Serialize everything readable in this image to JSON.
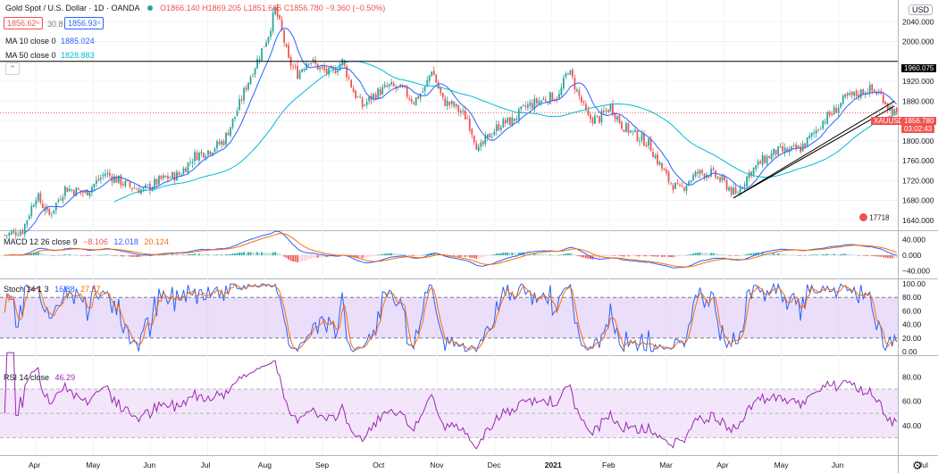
{
  "header": {
    "symbol": "Gold Spot / U.S. Dollar · 1D · OANDA",
    "ohlc": "O1866.140 H1869.205 L1851.665 C1856.780 −9.360 (−0.50%)",
    "bid": "1856.62⁶",
    "spread": "30.8",
    "ask": "1856.93⁴",
    "ma10_title": "MA 10 close 0",
    "ma10_value": "1885.024",
    "ma50_title": "MA 50 close 0",
    "ma50_value": "1828.883",
    "currency": "USD"
  },
  "badges": {
    "hline_label": "1960.075",
    "symbol_tag": "XAUUSD",
    "price_label": "1856.780",
    "countdown": "03:02:43",
    "event_label": "17718"
  },
  "colors": {
    "up": "#26a69a",
    "down": "#ef5350",
    "ma10": "#2962ff",
    "ma50": "#00bcd4",
    "macd": "#2962ff",
    "signal": "#ff6d00",
    "stoch_k": "#2962ff",
    "stoch_d": "#ff6d00",
    "stoch_band": "#d9c2f5",
    "rsi": "#9c27b0",
    "rsi_band": "#f0e0fa",
    "hline": "#000000",
    "price_tag": "#ef5350"
  },
  "panels": {
    "macd": {
      "title": "MACD 12 26 close 9",
      "v1": "−8.106",
      "v2": "12.018",
      "v3": "20.124",
      "ticks": [
        "40.000",
        "0.000",
        "−40.000"
      ]
    },
    "stoch": {
      "title": "Stoch 14 1 3",
      "v1": "16.88",
      "v2": "27.57",
      "ticks": [
        "100.00",
        "80.00",
        "60.00",
        "40.00",
        "20.00",
        "0.00"
      ]
    },
    "rsi": {
      "title": "RSI 14 close",
      "v1": "46.29",
      "ticks": [
        "80.00",
        "60.00",
        "40.00"
      ]
    }
  },
  "price_ticks": [
    "2040.000",
    "2000.000",
    "1920.000",
    "1880.000",
    "1840.000",
    "1800.000",
    "1760.000",
    "1720.000",
    "1680.000",
    "1640.000"
  ],
  "chart_data": {
    "type": "candlestick",
    "symbol": "XAUUSD",
    "interval": "1D",
    "x_months": [
      "Apr",
      "May",
      "Jun",
      "Jul",
      "Aug",
      "Sep",
      "Oct",
      "Nov",
      "Dec",
      "2021",
      "Feb",
      "Mar",
      "Apr",
      "May",
      "Jun",
      "Jul"
    ],
    "price_anchors": [
      [
        0,
        1610
      ],
      [
        8,
        1620
      ],
      [
        14,
        1690
      ],
      [
        20,
        1650
      ],
      [
        27,
        1705
      ],
      [
        36,
        1695
      ],
      [
        45,
        1735
      ],
      [
        55,
        1710
      ],
      [
        62,
        1700
      ],
      [
        70,
        1722
      ],
      [
        78,
        1732
      ],
      [
        85,
        1770
      ],
      [
        92,
        1782
      ],
      [
        98,
        1800
      ],
      [
        103,
        1850
      ],
      [
        108,
        1910
      ],
      [
        113,
        1962
      ],
      [
        118,
        2015
      ],
      [
        121,
        2065
      ],
      [
        124,
        2020
      ],
      [
        127,
        1960
      ],
      [
        131,
        1935
      ],
      [
        136,
        1965
      ],
      [
        141,
        1945
      ],
      [
        146,
        1935
      ],
      [
        151,
        1960
      ],
      [
        156,
        1900
      ],
      [
        160,
        1870
      ],
      [
        166,
        1895
      ],
      [
        172,
        1910
      ],
      [
        178,
        1902
      ],
      [
        183,
        1880
      ],
      [
        188,
        1905
      ],
      [
        191,
        1945
      ],
      [
        196,
        1880
      ],
      [
        201,
        1870
      ],
      [
        207,
        1845
      ],
      [
        212,
        1780
      ],
      [
        217,
        1812
      ],
      [
        222,
        1835
      ],
      [
        227,
        1840
      ],
      [
        233,
        1868
      ],
      [
        239,
        1880
      ],
      [
        244,
        1888
      ],
      [
        248,
        1890
      ],
      [
        252,
        1945
      ],
      [
        256,
        1900
      ],
      [
        261,
        1845
      ],
      [
        266,
        1845
      ],
      [
        271,
        1870
      ],
      [
        276,
        1832
      ],
      [
        282,
        1812
      ],
      [
        288,
        1795
      ],
      [
        292,
        1760
      ],
      [
        297,
        1720
      ],
      [
        302,
        1700
      ],
      [
        306,
        1720
      ],
      [
        310,
        1735
      ],
      [
        316,
        1735
      ],
      [
        322,
        1715
      ],
      [
        327,
        1690
      ],
      [
        333,
        1735
      ],
      [
        339,
        1760
      ],
      [
        345,
        1778
      ],
      [
        351,
        1780
      ],
      [
        356,
        1785
      ],
      [
        361,
        1810
      ],
      [
        366,
        1840
      ],
      [
        371,
        1860
      ],
      [
        376,
        1885
      ],
      [
        381,
        1893
      ],
      [
        386,
        1905
      ],
      [
        391,
        1895
      ],
      [
        393,
        1887
      ],
      [
        395,
        1870
      ],
      [
        398,
        1856.78
      ]
    ],
    "ohlc_last": {
      "open": 1866.14,
      "high": 1869.205,
      "low": 1851.665,
      "close": 1856.78,
      "change": -9.36,
      "change_pct": -0.5
    },
    "horizontal_line": 1960.075,
    "trendlines": [
      {
        "from": [
          326,
          1685
        ],
        "to": [
          398,
          1870
        ]
      },
      {
        "from": [
          326,
          1685
        ],
        "to": [
          398,
          1880
        ]
      }
    ],
    "moving_averages": [
      {
        "name": "MA 10 close 0",
        "last": 1885.024
      },
      {
        "name": "MA 50 close 0",
        "last": 1828.883
      }
    ],
    "price_ylim": [
      1620,
      2080
    ],
    "macd_last": {
      "hist": -8.106,
      "macd": 12.018,
      "signal": 20.124
    },
    "stoch_last": {
      "k": 16.88,
      "d": 27.57
    },
    "rsi_last": 46.29,
    "stoch_bands": [
      20,
      80
    ],
    "rsi_bands": [
      30,
      70
    ]
  }
}
